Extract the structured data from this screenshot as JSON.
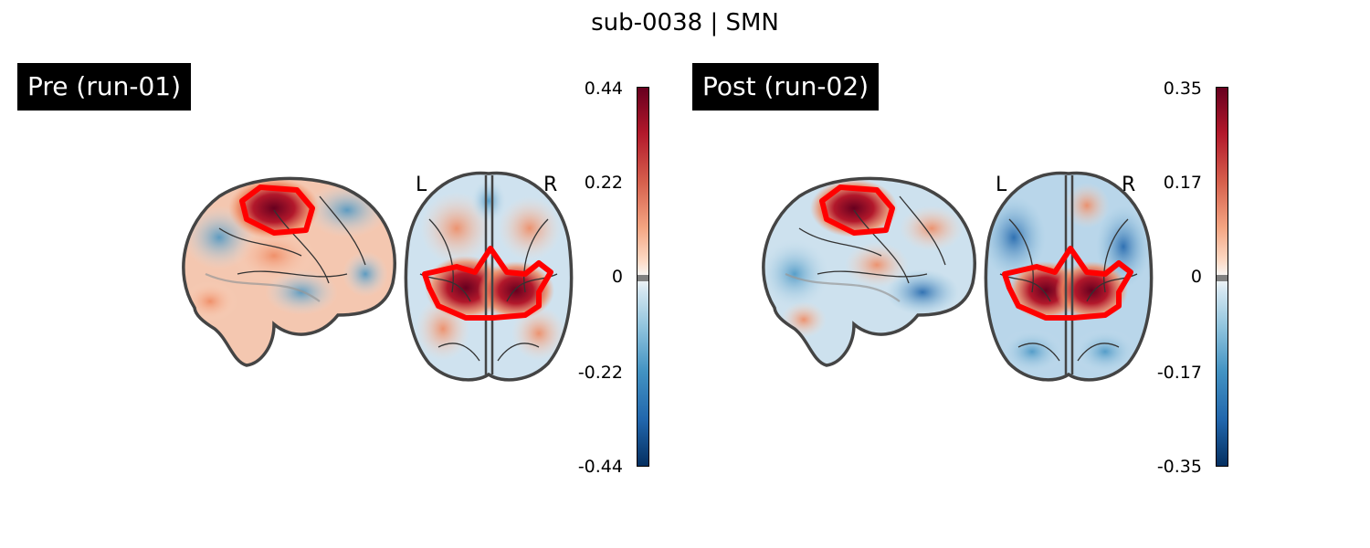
{
  "figure": {
    "title": "sub-0038 | SMN"
  },
  "panels": [
    {
      "label": "Pre (run-01)",
      "orientation": {
        "left": "L",
        "right": "R"
      },
      "colorbar": {
        "ticks": [
          "0.44",
          "0.22",
          "0",
          "-0.22",
          "-0.44"
        ],
        "min": -0.44,
        "max": 0.44,
        "colormap": "RdBu_r"
      }
    },
    {
      "label": "Post (run-02)",
      "orientation": {
        "left": "L",
        "right": "R"
      },
      "colorbar": {
        "ticks": [
          "0.35",
          "0.17",
          "0",
          "-0.17",
          "-0.35"
        ],
        "min": -0.35,
        "max": 0.35,
        "colormap": "RdBu_r"
      }
    }
  ],
  "colors": {
    "roi_outline": "#ff0000",
    "brain_outline": "#444444",
    "positive_max": "#67001f",
    "negative_max": "#053061"
  }
}
